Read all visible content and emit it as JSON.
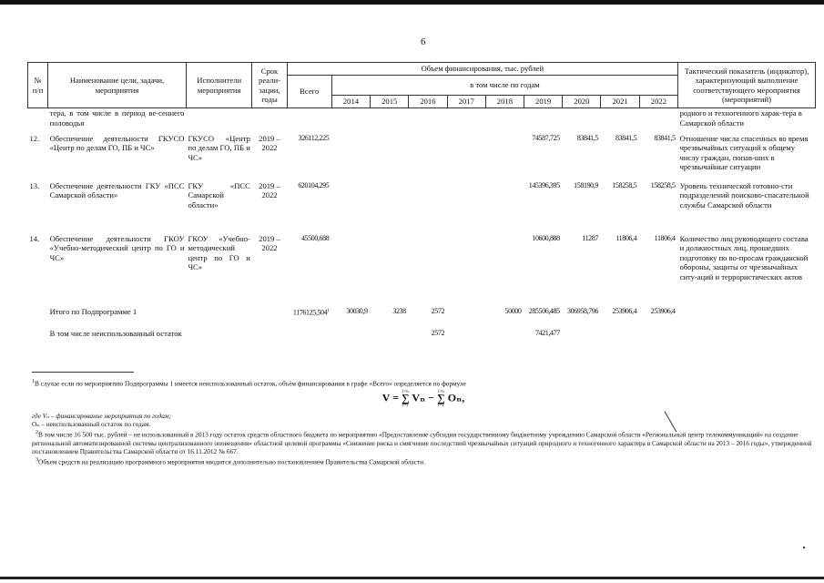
{
  "page_number": "6",
  "header": {
    "num": "№ п/п",
    "name": "Наименование цели, задачи, мероприятия",
    "executors": "Исполнители мероприятия",
    "term": "Срок реали-зации, годы",
    "funding": "Объем финансирования, тыс. рублей",
    "total": "Всего",
    "by_years": "в том числе по годам",
    "years": [
      "2014",
      "2015",
      "2016",
      "2017",
      "2018",
      "2019",
      "2020",
      "2021",
      "2022"
    ],
    "indicator": "Тактический показатель (индикатор), характеризующий выполнение соответствующего мероприятия (мероприятий)"
  },
  "continuation": {
    "name": "тера, в том числе в период ве-сеннего половодья",
    "indicator": "родного и техногенного харак-тера в Самарской области"
  },
  "rows": [
    {
      "num": "12.",
      "name": "Обеспечение деятельности ГКУСО «Центр по делам ГО, ПБ и ЧС»",
      "executor": "ГКУСО «Центр по делам ГО, ПБ и ЧС»",
      "term": "2019 – 2022",
      "total": "326112,225",
      "years": [
        "",
        "",
        "",
        "",
        "",
        "74587,725",
        "83841,5",
        "83841,5",
        "83841,5"
      ],
      "indicator": "Отношение числа спасенных во время чрезвычайных ситуаций к общему числу граждан, попав-ших в чрезвычайные ситуации"
    },
    {
      "num": "13.",
      "name": "Обеспечение деятельности ГКУ «ПСС Самарской области»",
      "executor": "ГКУ «ПСС Самарской области»",
      "term": "2019 – 2022",
      "total": "620104,295",
      "years": [
        "",
        "",
        "",
        "",
        "",
        "145396,395",
        "158190,9",
        "158258,5",
        "158258,5"
      ],
      "indicator": "Уровень технической готовно-сти подразделений поисково-спасательной службы Самарской области"
    },
    {
      "num": "14.",
      "name": "Обеспечение деятельности ГКОУ «Учебно-методический центр по ГО и ЧС»",
      "executor": "ГКОУ «Учебно-методический центр по ГО и ЧС»",
      "term": "2019 – 2022",
      "total": "45500,688",
      "years": [
        "",
        "",
        "",
        "",
        "",
        "10600,888",
        "11287",
        "11806,4",
        "11806,4"
      ],
      "indicator": "Количество лиц руководящего состава и должностных лиц, прошедших подготовку по во-просам гражданской обороны, защиты от чрезвычайных ситу-аций и террористических актов"
    }
  ],
  "summary": [
    {
      "name": "Итого по Подпрограмме 1",
      "total": "1176125,504",
      "total_sup": "1",
      "years": [
        "30030,9",
        "3238",
        "2572",
        "",
        "50000",
        "285506,485",
        "306958,796",
        "253906,4",
        "253906,4"
      ]
    },
    {
      "name": "В том числе неиспользованный остаток",
      "total": "",
      "total_sup": "",
      "years": [
        "",
        "",
        "2572",
        "",
        "",
        "7421,477",
        "",
        "",
        ""
      ]
    }
  ],
  "footnotes": {
    "f1": "В случае если по мероприятию Подпрограммы 1 имеется неиспользованный остаток, объём финансирования в графе «Всего» определяется по формуле",
    "formula_left": "V = ",
    "sum_top": "i=n",
    "sum_bottom": "i=1",
    "formula_v": "Vₙ − ",
    "formula_o": "Oₙ,",
    "where_v": "где Vₙ – финансирование мероприятия по годам;",
    "where_o": "Oₙ – неиспользованный остаток по годам.",
    "f2": "В том числе 16 500 тыс. рублей – не использованный в 2013 году остаток средств областного бюджета по мероприятию «Предоставление субсидии государственному бюджетному учреждению Самарской области «Региональный центр телекоммуникаций» на создание региональной автоматизированной системы централизованного оповещения» областной целевой программы «Снижение риска и смягчение последствий чрезвычайных ситуаций природного и техногенного характера в Самарской области на 2013 – 2016 годы», утвержденной постановлением Правительства Самарской области от 16.11.2012 № 667.",
    "f3": "Объем средств на реализацию программного мероприятия вводится дополнительно постановлением Правительства Самарской области.",
    "m1": "1",
    "m2": "2",
    "m3": "3"
  }
}
